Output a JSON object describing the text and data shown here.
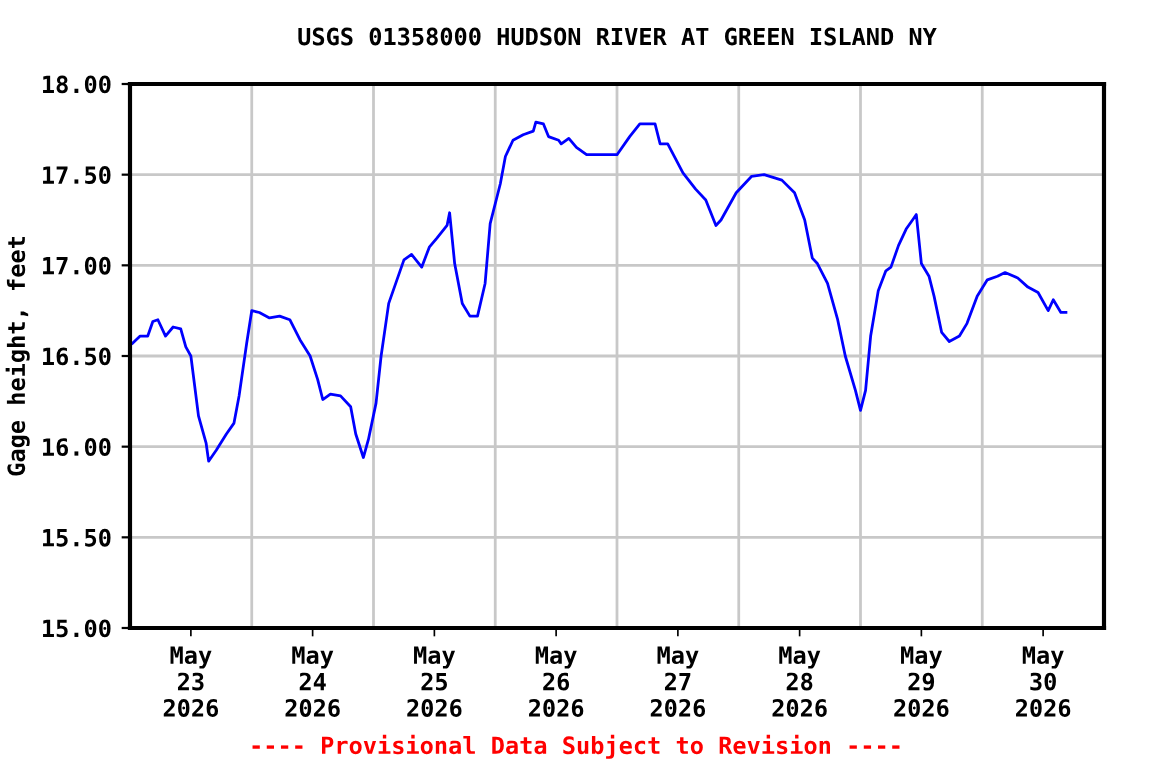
{
  "chart_data": {
    "type": "line",
    "title": "USGS 01358000 HUDSON RIVER AT GREEN ISLAND NY",
    "ylabel": "Gage height, feet",
    "annotations": [
      "---- Provisional Data Subject to Revision ----"
    ],
    "xlim": [
      "2026-05-23T00:00",
      "2026-05-31T00:00"
    ],
    "xticks": [
      {
        "value": "2026-05-23T12:00",
        "label": "May\n23\n2026"
      },
      {
        "value": "2026-05-24T12:00",
        "label": "May\n24\n2026"
      },
      {
        "value": "2026-05-25T12:00",
        "label": "May\n25\n2026"
      },
      {
        "value": "2026-05-26T12:00",
        "label": "May\n26\n2026"
      },
      {
        "value": "2026-05-27T12:00",
        "label": "May\n27\n2026"
      },
      {
        "value": "2026-05-28T12:00",
        "label": "May\n28\n2026"
      },
      {
        "value": "2026-05-29T12:00",
        "label": "May\n29\n2026"
      },
      {
        "value": "2026-05-30T12:00",
        "label": "May\n30\n2026"
      },
      {
        "value": "2026-05-24T00:00",
        "label": null
      },
      {
        "value": "2026-05-25T00:00",
        "label": null
      },
      {
        "value": "2026-05-26T00:00",
        "label": null
      },
      {
        "value": "2026-05-27T00:00",
        "label": null
      },
      {
        "value": "2026-05-28T00:00",
        "label": null
      },
      {
        "value": "2026-05-29T00:00",
        "label": null
      },
      {
        "value": "2026-05-30T00:00",
        "label": null
      }
    ],
    "ylim": [
      15.0,
      18.0
    ],
    "yticks": [
      {
        "value": 15.0,
        "label": "15.00"
      },
      {
        "value": 15.5,
        "label": "15.50"
      },
      {
        "value": 16.0,
        "label": "16.00"
      },
      {
        "value": 16.5,
        "label": "16.50"
      },
      {
        "value": 17.0,
        "label": "17.00"
      },
      {
        "value": 17.5,
        "label": "17.50"
      },
      {
        "value": 18.0,
        "label": "18.00"
      }
    ],
    "grid": true,
    "legend": false,
    "marker": "none",
    "line_style": "solid",
    "x": [
      "2026-05-23T00:30",
      "2026-05-23T02:00",
      "2026-05-23T03:30",
      "2026-05-23T04:30",
      "2026-05-23T05:30",
      "2026-05-23T07:00",
      "2026-05-23T08:30",
      "2026-05-23T10:00",
      "2026-05-23T11:00",
      "2026-05-23T12:00",
      "2026-05-23T13:30",
      "2026-05-23T15:00",
      "2026-05-23T15:30",
      "2026-05-23T17:00",
      "2026-05-23T19:00",
      "2026-05-23T20:30",
      "2026-05-23T21:30",
      "2026-05-23T23:00",
      "2026-05-24T00:00",
      "2026-05-24T01:30",
      "2026-05-24T03:30",
      "2026-05-24T05:30",
      "2026-05-24T07:30",
      "2026-05-24T09:30",
      "2026-05-24T11:30",
      "2026-05-24T13:00",
      "2026-05-24T14:00",
      "2026-05-24T15:30",
      "2026-05-24T17:30",
      "2026-05-24T19:30",
      "2026-05-24T20:30",
      "2026-05-24T22:00",
      "2026-05-24T23:00",
      "2026-05-25T00:30",
      "2026-05-25T01:30",
      "2026-05-25T03:00",
      "2026-05-25T04:30",
      "2026-05-25T06:00",
      "2026-05-25T07:30",
      "2026-05-25T09:30",
      "2026-05-25T11:00",
      "2026-05-25T12:30",
      "2026-05-25T14:30",
      "2026-05-25T15:00",
      "2026-05-25T16:00",
      "2026-05-25T17:30",
      "2026-05-25T19:00",
      "2026-05-25T20:30",
      "2026-05-25T22:00",
      "2026-05-25T23:00",
      "2026-05-26T01:00",
      "2026-05-26T02:00",
      "2026-05-26T03:30",
      "2026-05-26T05:30",
      "2026-05-26T07:30",
      "2026-05-26T08:00",
      "2026-05-26T09:30",
      "2026-05-26T10:30",
      "2026-05-26T12:30",
      "2026-05-26T13:00",
      "2026-05-26T14:30",
      "2026-05-26T16:00",
      "2026-05-26T18:00",
      "2026-05-27T00:00",
      "2026-05-27T02:30",
      "2026-05-27T04:30",
      "2026-05-27T07:30",
      "2026-05-27T08:30",
      "2026-05-27T10:00",
      "2026-05-27T13:00",
      "2026-05-27T15:30",
      "2026-05-27T17:30",
      "2026-05-27T19:30",
      "2026-05-27T20:30",
      "2026-05-27T23:30",
      "2026-05-28T02:30",
      "2026-05-28T05:00",
      "2026-05-28T08:30",
      "2026-05-28T11:00",
      "2026-05-28T13:00",
      "2026-05-28T14:30",
      "2026-05-28T15:30",
      "2026-05-28T17:30",
      "2026-05-28T19:30",
      "2026-05-28T21:00",
      "2026-05-28T23:00",
      "2026-05-29T00:00",
      "2026-05-29T01:00",
      "2026-05-29T02:00",
      "2026-05-29T03:30",
      "2026-05-29T05:00",
      "2026-05-29T06:00",
      "2026-05-29T07:30",
      "2026-05-29T09:00",
      "2026-05-29T10:30",
      "2026-05-29T11:00",
      "2026-05-29T12:00",
      "2026-05-29T13:30",
      "2026-05-29T14:30",
      "2026-05-29T16:00",
      "2026-05-29T17:30",
      "2026-05-29T19:30",
      "2026-05-29T21:00",
      "2026-05-29T23:00",
      "2026-05-30T01:00",
      "2026-05-30T03:00",
      "2026-05-30T04:30",
      "2026-05-30T07:00",
      "2026-05-30T09:00",
      "2026-05-30T11:00",
      "2026-05-30T13:00",
      "2026-05-30T14:00",
      "2026-05-30T15:30",
      "2026-05-30T16:30"
    ],
    "series": [
      {
        "color": "#0000ff",
        "values": [
          16.57,
          16.61,
          16.61,
          16.69,
          16.7,
          16.61,
          16.66,
          16.65,
          16.55,
          16.5,
          16.17,
          16.02,
          15.92,
          15.98,
          16.07,
          16.13,
          16.28,
          16.57,
          16.75,
          16.74,
          16.71,
          16.72,
          16.7,
          16.59,
          16.5,
          16.37,
          16.26,
          16.29,
          16.28,
          16.22,
          16.07,
          15.94,
          16.04,
          16.24,
          16.5,
          16.79,
          16.91,
          17.03,
          17.06,
          16.99,
          17.1,
          17.15,
          17.22,
          17.29,
          17.01,
          16.79,
          16.72,
          16.72,
          16.9,
          17.23,
          17.45,
          17.6,
          17.69,
          17.72,
          17.74,
          17.79,
          17.78,
          17.71,
          17.69,
          17.67,
          17.7,
          17.65,
          17.61,
          17.61,
          17.71,
          17.78,
          17.78,
          17.67,
          17.67,
          17.51,
          17.42,
          17.36,
          17.22,
          17.25,
          17.4,
          17.49,
          17.5,
          17.47,
          17.4,
          17.25,
          17.04,
          17.01,
          16.9,
          16.7,
          16.5,
          16.31,
          16.2,
          16.31,
          16.61,
          16.86,
          16.97,
          16.99,
          17.11,
          17.2,
          17.26,
          17.28,
          17.01,
          16.94,
          16.83,
          16.63,
          16.58,
          16.61,
          16.68,
          16.83,
          16.92,
          16.94,
          16.96,
          16.93,
          16.88,
          16.85,
          16.75,
          16.81,
          16.74,
          16.74
        ]
      }
    ]
  }
}
